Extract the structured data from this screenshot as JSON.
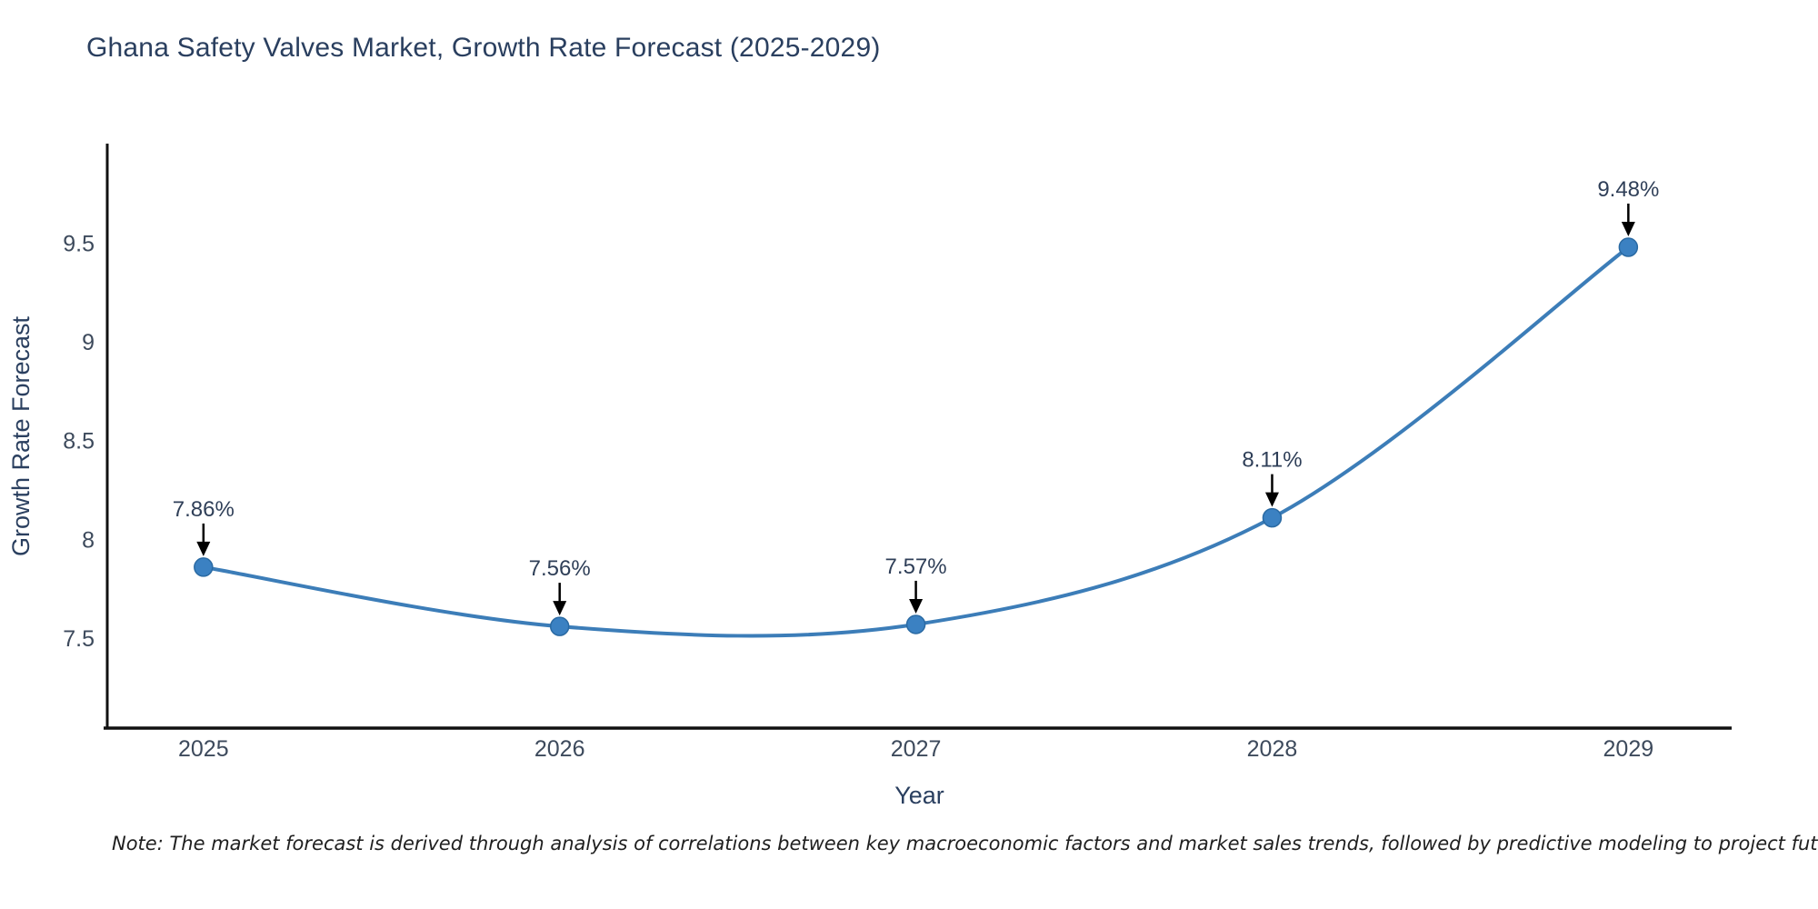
{
  "chart_data": {
    "type": "line",
    "title": "Ghana Safety Valves Market, Growth Rate Forecast (2025-2029)",
    "x": [
      2025,
      2026,
      2027,
      2028,
      2029
    ],
    "series": [
      {
        "name": "Growth Rate Forecast",
        "values": [
          7.86,
          7.56,
          7.57,
          8.11,
          9.48
        ]
      }
    ],
    "point_labels": [
      "7.86%",
      "7.56%",
      "7.57%",
      "8.11%",
      "9.48%"
    ],
    "xlabel": "Year",
    "ylabel": "Growth Rate Forecast",
    "xticks": [
      "2025",
      "2026",
      "2027",
      "2028",
      "2029"
    ],
    "yticks": [
      7.5,
      8,
      8.5,
      9,
      9.5
    ],
    "xlim": [
      2024.73,
      2029.29
    ],
    "ylim": [
      7.045,
      10.0
    ],
    "grid": false,
    "legend": false,
    "line_shape": "spline",
    "colors": {
      "line": "#3c7db8",
      "marker_fill": "#3b81c2",
      "marker_edge": "#2a6aa3",
      "axis": "#111111",
      "tick_text": "#3d4a5c",
      "title_text": "#2a3f5f",
      "annotation_text": "#2f3f58",
      "annotation_arrow": "#000000",
      "background": "#ffffff"
    }
  },
  "note": {
    "text": "Note: The market forecast is derived through analysis of correlations between key macroeconomic factors and market sales trends, followed by predictive modeling to project future sales"
  }
}
